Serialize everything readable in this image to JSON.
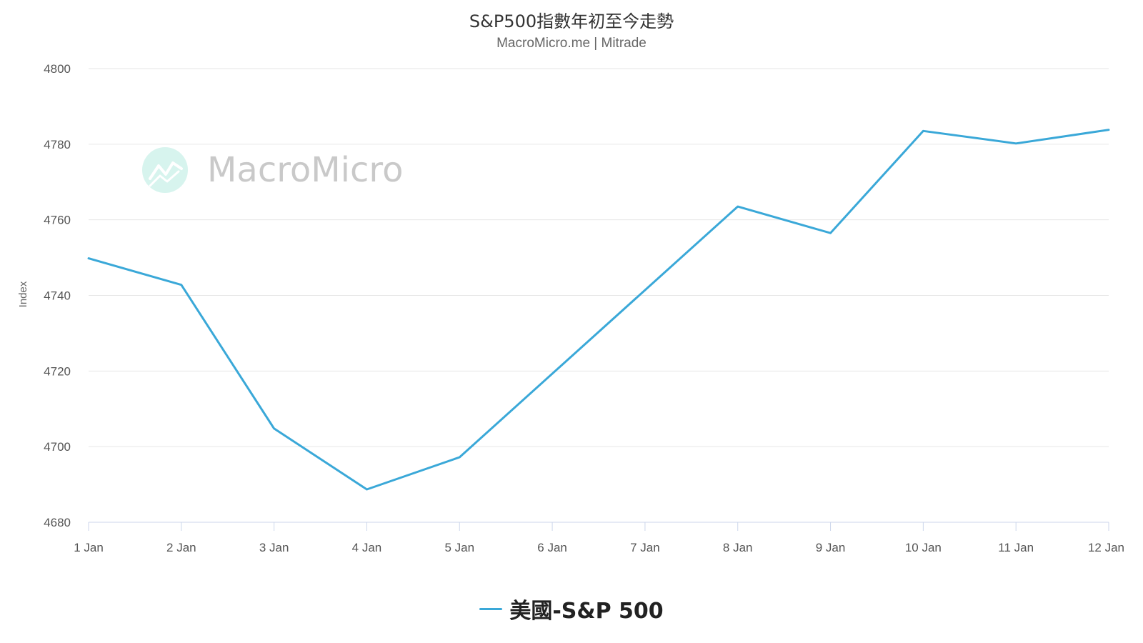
{
  "header": {
    "title": "S&P500指數年初至今走勢",
    "subtitle": "MacroMicro.me | Mitrade"
  },
  "watermark": {
    "text": "MacroMicro",
    "icon": "macromicro-logo-icon",
    "icon_color": "#d7f4ee",
    "icon_line_color": "#ffffff"
  },
  "chart_data": {
    "type": "line",
    "categories": [
      "1 Jan",
      "2 Jan",
      "3 Jan",
      "4 Jan",
      "5 Jan",
      "6 Jan",
      "7 Jan",
      "8 Jan",
      "9 Jan",
      "10 Jan",
      "11 Jan",
      "12 Jan"
    ],
    "series": [
      {
        "name": "美國-S&P 500",
        "color": "#3aa8d8",
        "points": [
          {
            "x": "1 Jan",
            "y": 4749.8
          },
          {
            "x": "2 Jan",
            "y": 4742.8
          },
          {
            "x": "3 Jan",
            "y": 4704.8
          },
          {
            "x": "4 Jan",
            "y": 4688.7
          },
          {
            "x": "5 Jan",
            "y": 4697.2
          },
          {
            "x": "8 Jan",
            "y": 4763.5
          },
          {
            "x": "9 Jan",
            "y": 4756.5
          },
          {
            "x": "10 Jan",
            "y": 4783.5
          },
          {
            "x": "11 Jan",
            "y": 4780.2
          },
          {
            "x": "12 Jan",
            "y": 4783.8
          }
        ]
      }
    ],
    "ylabel": "Index",
    "xlabel": "",
    "ylim": [
      4680,
      4800
    ],
    "yticks": [
      4680,
      4700,
      4720,
      4740,
      4760,
      4780,
      4800
    ],
    "grid": true,
    "legend": "bottom-center"
  }
}
